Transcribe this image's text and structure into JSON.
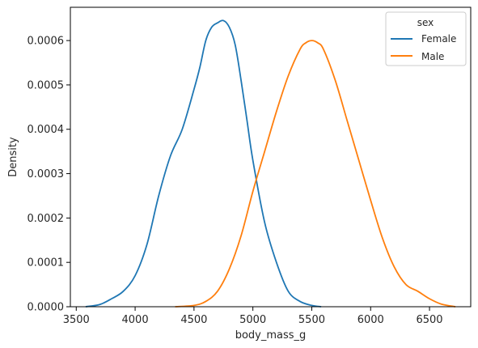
{
  "chart_data": {
    "type": "line",
    "title": "",
    "xlabel": "body_mass_g",
    "ylabel": "Density",
    "xlim": [
      3450,
      6850
    ],
    "ylim": [
      0,
      0.000675
    ],
    "x_ticks": [
      3500,
      4000,
      4500,
      5000,
      5500,
      6000,
      6500
    ],
    "x_tick_labels": [
      "3500",
      "4000",
      "4500",
      "5000",
      "5500",
      "6000",
      "6500"
    ],
    "y_ticks": [
      0,
      0.0001,
      0.0002,
      0.0003,
      0.0004,
      0.0005,
      0.0006
    ],
    "y_tick_labels": [
      "0.0000",
      "0.0001",
      "0.0002",
      "0.0003",
      "0.0004",
      "0.0005",
      "0.0006"
    ],
    "grid": false,
    "legend": {
      "title": "sex",
      "placement": "top-right"
    },
    "series": [
      {
        "name": "Female",
        "color": "#1f77b4",
        "x": [
          3580,
          3700,
          3800,
          3900,
          4000,
          4100,
          4200,
          4300,
          4400,
          4500,
          4550,
          4600,
          4650,
          4700,
          4750,
          4800,
          4850,
          4900,
          4950,
          5000,
          5100,
          5200,
          5300,
          5400,
          5500,
          5580
        ],
        "y": [
          0.0,
          5e-06,
          1.8e-05,
          3.5e-05,
          7e-05,
          0.00014,
          0.00025,
          0.00034,
          0.0004,
          0.00049,
          0.00054,
          0.0006,
          0.00063,
          0.00064,
          0.000645,
          0.00063,
          0.00059,
          0.00051,
          0.00042,
          0.00033,
          0.00019,
          0.0001,
          3.5e-05,
          1.2e-05,
          3e-06,
          0.0
        ]
      },
      {
        "name": "Male",
        "color": "#ff7f0e",
        "x": [
          4340,
          4500,
          4600,
          4700,
          4800,
          4900,
          5000,
          5100,
          5200,
          5300,
          5400,
          5450,
          5500,
          5550,
          5600,
          5700,
          5800,
          5900,
          6000,
          6100,
          6200,
          6300,
          6400,
          6500,
          6600,
          6720
        ],
        "y": [
          0.0,
          3e-06,
          1.2e-05,
          3.5e-05,
          8.5e-05,
          0.00016,
          0.00026,
          0.00035,
          0.00044,
          0.00052,
          0.00058,
          0.000595,
          0.0006,
          0.000595,
          0.00058,
          0.00051,
          0.00042,
          0.00033,
          0.00024,
          0.000155,
          9e-05,
          5e-05,
          3.5e-05,
          1.8e-05,
          6e-06,
          0.0
        ]
      }
    ]
  }
}
